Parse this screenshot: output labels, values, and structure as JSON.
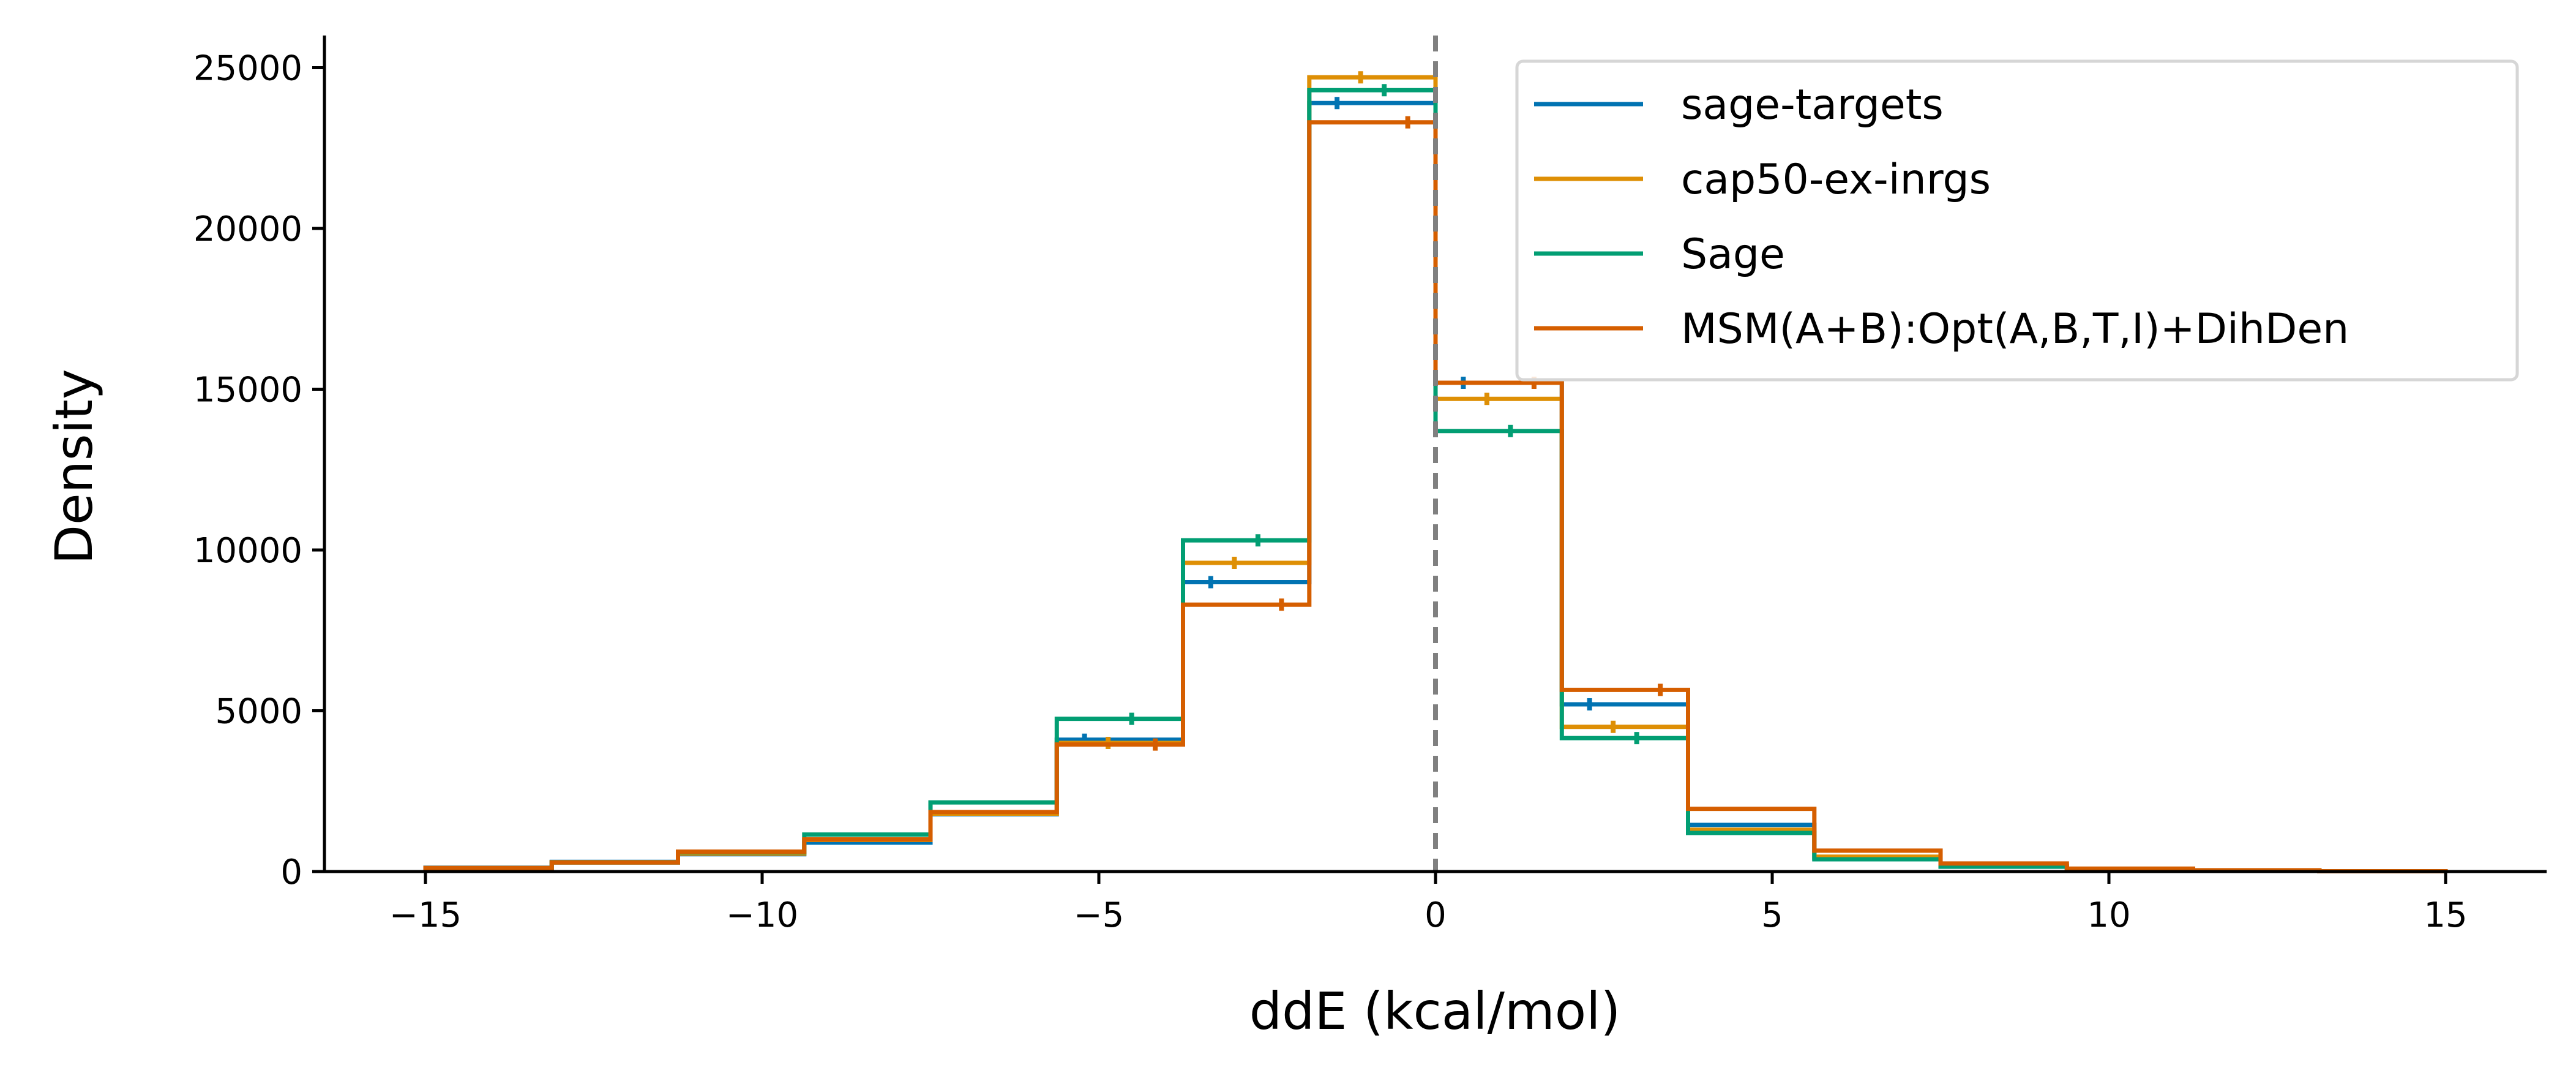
{
  "chart_data": {
    "type": "line",
    "subtype": "step-histogram",
    "title": "",
    "xlabel": "ddE (kcal/mol)",
    "ylabel": "Density",
    "xlim": [
      -16.5,
      16.5
    ],
    "ylim": [
      0,
      26000
    ],
    "xticks": [
      -15,
      -10,
      -5,
      0,
      5,
      10,
      15
    ],
    "xtick_labels": [
      "−15",
      "−10",
      "−5",
      "0",
      "5",
      "10",
      "15"
    ],
    "yticks": [
      0,
      5000,
      10000,
      15000,
      20000,
      25000
    ],
    "ytick_labels": [
      "0",
      "5000",
      "10000",
      "15000",
      "20000",
      "25000"
    ],
    "grid": false,
    "legend_position": "top-right",
    "reference_line": {
      "x": 0,
      "style": "dashed",
      "color": "#808080"
    },
    "bin_edges": [
      -15,
      -13.125,
      -11.25,
      -9.375,
      -7.5,
      -5.625,
      -3.75,
      -1.875,
      0,
      1.875,
      3.75,
      5.625,
      7.5,
      9.375,
      11.25,
      13.125,
      15
    ],
    "series": [
      {
        "name": "sage-targets",
        "color": "#0173b2",
        "values": [
          120,
          300,
          540,
          900,
          1780,
          4100,
          9000,
          23900,
          15200,
          5200,
          1450,
          420,
          160,
          70,
          30,
          10
        ]
      },
      {
        "name": "cap50-ex-inrgs",
        "color": "#de8f05",
        "values": [
          110,
          290,
          560,
          980,
          1800,
          4000,
          9600,
          24700,
          14700,
          4500,
          1300,
          460,
          180,
          70,
          30,
          10
        ]
      },
      {
        "name": "Sage",
        "color": "#029e73",
        "values": [
          100,
          280,
          600,
          1150,
          2150,
          4750,
          10300,
          24300,
          13700,
          4150,
          1200,
          380,
          150,
          60,
          25,
          10
        ]
      },
      {
        "name": "MSM(A+B):Opt(A,B,T,I)+DihDen",
        "color": "#d55e00",
        "values": [
          110,
          280,
          620,
          1000,
          1850,
          3950,
          8300,
          23300,
          15200,
          5650,
          1950,
          650,
          250,
          90,
          40,
          10
        ]
      }
    ]
  }
}
